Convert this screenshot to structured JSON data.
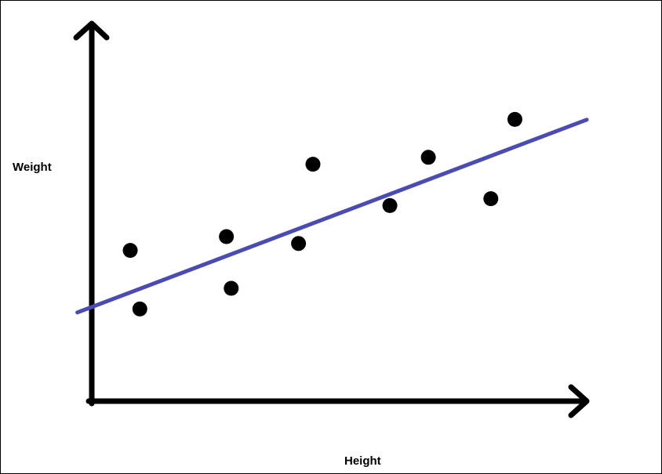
{
  "chart_data": {
    "type": "scatter",
    "title": "",
    "xlabel": "Height",
    "ylabel": "Weight",
    "grid": false,
    "legend": "none",
    "xlim": [
      0,
      100
    ],
    "ylim": [
      0,
      100
    ],
    "points": [
      {
        "x": 8,
        "y": 41
      },
      {
        "x": 10,
        "y": 24
      },
      {
        "x": 28,
        "y": 45
      },
      {
        "x": 29,
        "y": 30
      },
      {
        "x": 43,
        "y": 43
      },
      {
        "x": 46,
        "y": 66
      },
      {
        "x": 62,
        "y": 54
      },
      {
        "x": 70,
        "y": 68
      },
      {
        "x": 83,
        "y": 56
      },
      {
        "x": 88,
        "y": 79
      }
    ],
    "trendline": {
      "x": [
        -3,
        100
      ],
      "y": [
        23,
        78
      ]
    },
    "colors": {
      "points": "#000000",
      "trendline": "#4b4bb4",
      "axes": "#000000"
    }
  }
}
